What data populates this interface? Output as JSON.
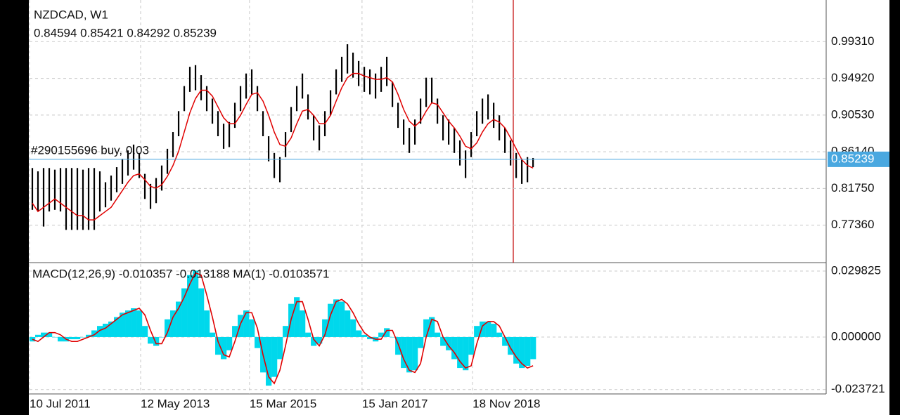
{
  "chart_data": [
    {
      "type": "ohlc",
      "title": "NZDCAD, W1",
      "subtitle": "0.84594 0.85421 0.84292 0.85239",
      "annotation": "#290155696 buy, 0.03",
      "price_line": 0.85239,
      "price_line_color": "#4aa8e0",
      "bar_color": "#000000",
      "ma_color": "#e00000",
      "ylim": [
        0.7297,
        1.0429
      ],
      "yticks": [
        {
          "value": 0.9931,
          "label": "0.99310"
        },
        {
          "value": 0.9492,
          "label": "0.94920"
        },
        {
          "value": 0.9053,
          "label": "0.90530"
        },
        {
          "value": 0.8614,
          "label": "0.86140"
        },
        {
          "value": 0.8175,
          "label": "0.81750"
        },
        {
          "value": 0.7736,
          "label": "0.77360"
        }
      ],
      "high": [
        0.842,
        0.838,
        0.842,
        0.842,
        0.84,
        0.842,
        0.842,
        0.842,
        0.842,
        0.84,
        0.842,
        0.842,
        0.838,
        0.825,
        0.833,
        0.843,
        0.853,
        0.863,
        0.87,
        0.86,
        0.835,
        0.823,
        0.83,
        0.845,
        0.865,
        0.885,
        0.91,
        0.94,
        0.963,
        0.965,
        0.953,
        0.94,
        0.925,
        0.91,
        0.895,
        0.897,
        0.92,
        0.94,
        0.955,
        0.96,
        0.94,
        0.91,
        0.88,
        0.86,
        0.855,
        0.885,
        0.915,
        0.94,
        0.955,
        0.93,
        0.905,
        0.893,
        0.91,
        0.935,
        0.96,
        0.975,
        0.99,
        0.98,
        0.97,
        0.963,
        0.96,
        0.955,
        0.963,
        0.975,
        0.945,
        0.92,
        0.9,
        0.89,
        0.9,
        0.925,
        0.95,
        0.95,
        0.925,
        0.905,
        0.9,
        0.89,
        0.875,
        0.863,
        0.885,
        0.91,
        0.925,
        0.93,
        0.92,
        0.905,
        0.89,
        0.875,
        0.86,
        0.853,
        0.855,
        0.854
      ],
      "low": [
        0.792,
        0.79,
        0.772,
        0.79,
        0.792,
        0.79,
        0.768,
        0.768,
        0.768,
        0.768,
        0.768,
        0.768,
        0.79,
        0.795,
        0.803,
        0.813,
        0.823,
        0.833,
        0.84,
        0.83,
        0.805,
        0.793,
        0.8,
        0.815,
        0.835,
        0.855,
        0.88,
        0.91,
        0.933,
        0.935,
        0.923,
        0.91,
        0.895,
        0.88,
        0.865,
        0.867,
        0.89,
        0.91,
        0.925,
        0.93,
        0.91,
        0.88,
        0.85,
        0.83,
        0.825,
        0.855,
        0.885,
        0.91,
        0.925,
        0.9,
        0.875,
        0.863,
        0.88,
        0.905,
        0.93,
        0.945,
        0.955,
        0.95,
        0.94,
        0.933,
        0.93,
        0.925,
        0.933,
        0.94,
        0.915,
        0.89,
        0.87,
        0.86,
        0.87,
        0.895,
        0.915,
        0.92,
        0.895,
        0.875,
        0.87,
        0.86,
        0.845,
        0.83,
        0.855,
        0.88,
        0.895,
        0.9,
        0.89,
        0.875,
        0.86,
        0.845,
        0.83,
        0.823,
        0.825,
        0.843
      ],
      "ma": [
        0.8,
        0.79,
        0.795,
        0.8,
        0.805,
        0.8,
        0.795,
        0.79,
        0.785,
        0.785,
        0.78,
        0.78,
        0.785,
        0.79,
        0.795,
        0.805,
        0.815,
        0.825,
        0.833,
        0.835,
        0.828,
        0.82,
        0.818,
        0.822,
        0.832,
        0.845,
        0.862,
        0.885,
        0.908,
        0.925,
        0.935,
        0.935,
        0.928,
        0.915,
        0.902,
        0.895,
        0.895,
        0.905,
        0.918,
        0.93,
        0.932,
        0.922,
        0.905,
        0.885,
        0.87,
        0.868,
        0.878,
        0.895,
        0.91,
        0.912,
        0.905,
        0.895,
        0.895,
        0.905,
        0.922,
        0.938,
        0.95,
        0.955,
        0.955,
        0.952,
        0.95,
        0.948,
        0.948,
        0.95,
        0.945,
        0.93,
        0.912,
        0.898,
        0.892,
        0.898,
        0.91,
        0.92,
        0.918,
        0.908,
        0.898,
        0.89,
        0.88,
        0.868,
        0.865,
        0.872,
        0.885,
        0.895,
        0.9,
        0.897,
        0.89,
        0.878,
        0.865,
        0.852,
        0.845,
        0.842
      ]
    },
    {
      "type": "macd",
      "title": "MACD(12,26,9) -0.010357 -0.013188 MA(1) -0.0103571",
      "histogram_color": "#00d8ec",
      "signal_color": "#e00000",
      "ylim": [
        -0.0254,
        0.0333
      ],
      "yticks": [
        0.029825,
        {
          "value": 0,
          "label": "0.000000"
        },
        -0.023721
      ],
      "xlim": [
        0,
        141.6
      ],
      "xticks": [
        {
          "value": 0,
          "label": "10 Jul 2011"
        },
        {
          "value": 19.75,
          "label": "12 May 2013"
        },
        {
          "value": 39.1,
          "label": "15 Mar 2015"
        },
        {
          "value": 59.1,
          "label": "15 Jan 2017"
        },
        {
          "value": 78.75,
          "label": "18 Nov 2018"
        }
      ],
      "histogram": [
        -0.002,
        0.001,
        0.002,
        0.002,
        0.0,
        -0.002,
        -0.002,
        -0.001,
        -0.001,
        0.0,
        0.001,
        0.003,
        0.005,
        0.006,
        0.007,
        0.009,
        0.011,
        0.012,
        0.013,
        0.012,
        0.005,
        -0.003,
        -0.004,
        0.0,
        0.008,
        0.012,
        0.016,
        0.022,
        0.028,
        0.03,
        0.022,
        0.012,
        0.002,
        -0.008,
        -0.01,
        -0.006,
        0.005,
        0.01,
        0.012,
        0.008,
        -0.005,
        -0.016,
        -0.022,
        -0.018,
        -0.01,
        0.005,
        0.015,
        0.018,
        0.012,
        0.002,
        -0.004,
        -0.003,
        0.008,
        0.015,
        0.017,
        0.016,
        0.012,
        0.008,
        0.003,
        0.001,
        -0.001,
        -0.002,
        0.002,
        0.004,
        0.0,
        -0.008,
        -0.014,
        -0.016,
        -0.015,
        -0.005,
        0.008,
        0.009,
        0.002,
        -0.004,
        -0.006,
        -0.01,
        -0.014,
        -0.015,
        -0.008,
        0.005,
        0.007,
        0.007,
        0.006,
        0.002,
        -0.004,
        -0.008,
        -0.012,
        -0.014,
        -0.013,
        -0.01
      ],
      "signal": [
        -0.001,
        -0.002,
        0.0,
        0.002,
        0.002,
        0.001,
        -0.001,
        -0.002,
        -0.002,
        -0.001,
        0.0,
        0.001,
        0.003,
        0.004,
        0.006,
        0.008,
        0.01,
        0.011,
        0.012,
        0.013,
        0.01,
        0.003,
        -0.003,
        -0.003,
        0.002,
        0.009,
        0.013,
        0.018,
        0.024,
        0.029,
        0.028,
        0.019,
        0.009,
        -0.002,
        -0.008,
        -0.009,
        -0.002,
        0.006,
        0.011,
        0.011,
        0.004,
        -0.008,
        -0.018,
        -0.021,
        -0.015,
        -0.004,
        0.008,
        0.016,
        0.016,
        0.008,
        -0.001,
        -0.004,
        0.001,
        0.01,
        0.016,
        0.017,
        0.015,
        0.011,
        0.006,
        0.002,
        0.0,
        -0.001,
        -0.001,
        0.003,
        0.003,
        -0.003,
        -0.01,
        -0.015,
        -0.016,
        -0.012,
        0.0,
        0.008,
        0.007,
        0.0,
        -0.004,
        -0.007,
        -0.011,
        -0.014,
        -0.013,
        -0.003,
        0.005,
        0.007,
        0.007,
        0.005,
        0.0,
        -0.005,
        -0.009,
        -0.012,
        -0.014,
        -0.013
      ]
    }
  ]
}
